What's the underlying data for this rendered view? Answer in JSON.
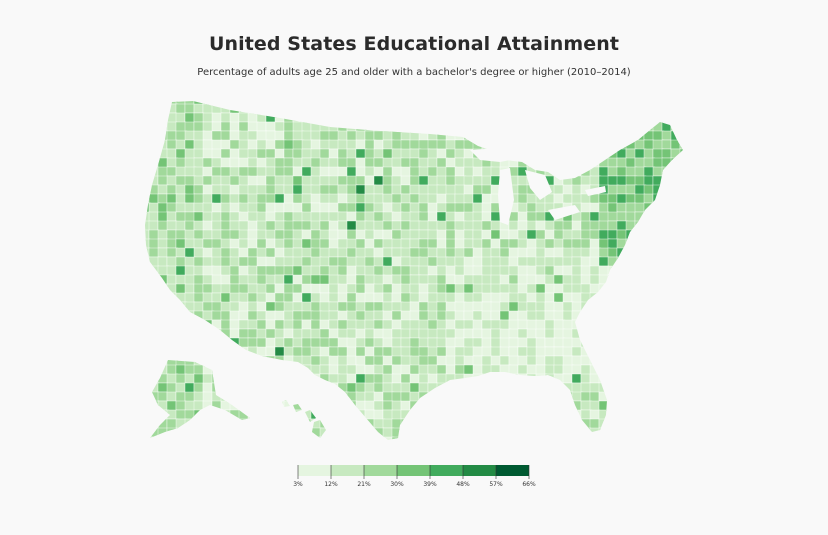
{
  "title": "United States Educational Attainment",
  "subtitle": "Percentage of adults age 25 and older with a bachelor's degree or higher (2010–2014)",
  "legend": {
    "ticks": [
      "3%",
      "12%",
      "21%",
      "30%",
      "39%",
      "48%",
      "57%",
      "66%"
    ],
    "colors": [
      "#e5f5e0",
      "#c7e9c0",
      "#a1d99b",
      "#74c476",
      "#41ab5d",
      "#238b45",
      "#005a32"
    ]
  },
  "colors": {
    "background": "#f9f9f9",
    "state_border": "#ffffff"
  }
}
